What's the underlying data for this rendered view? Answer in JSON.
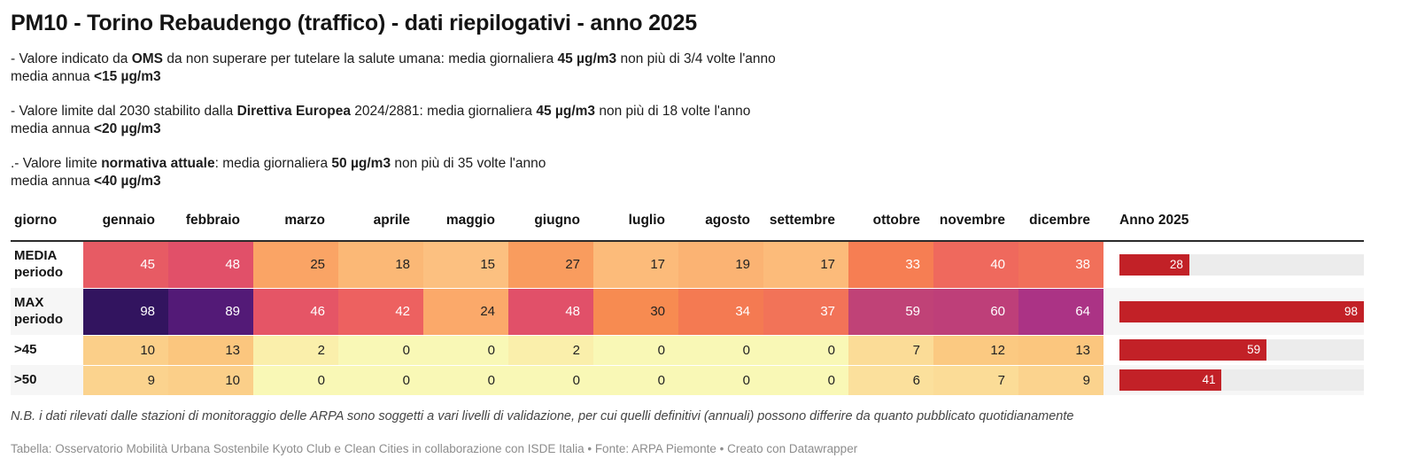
{
  "title": "PM10 - Torino Rebaudengo (traffico) - dati riepilogativi - anno 2025",
  "intro": {
    "p1_l1": [
      "- Valore indicato da ",
      "OMS",
      " da non superare per tutelare la salute umana: media giornaliera ",
      "45 µg/m3",
      " non più di 3/4 volte l'anno"
    ],
    "p1_l2": [
      "media annua ",
      "<15 µg/m3"
    ],
    "p2_l1": [
      "- Valore limite dal 2030 stabilito dalla ",
      "Direttiva Europea",
      " 2024/2881: media giornaliera ",
      "45 µg/m3",
      " non più di 18 volte l'anno"
    ],
    "p2_l2": [
      "media annua ",
      "<20 µg/m3"
    ],
    "p3_l1": [
      ".- Valore limite ",
      "normativa attuale",
      ": media giornaliera ",
      "50 µg/m3",
      " non più di 35 volte l'anno"
    ],
    "p3_l2": [
      "media annua ",
      "<40 µg/m3"
    ]
  },
  "chart_data": {
    "type": "table",
    "title": "PM10 - Torino Rebaudengo (traffico) - dati riepilogativi - anno 2025",
    "columns": [
      "giorno",
      "gennaio",
      "febbraio",
      "marzo",
      "aprile",
      "maggio",
      "giugno",
      "luglio",
      "agosto",
      "settembre",
      "ottobre",
      "novembre",
      "dicembre",
      "Anno 2025"
    ],
    "rows": [
      {
        "label": "MEDIA periodo",
        "values": [
          45,
          48,
          25,
          18,
          15,
          27,
          17,
          19,
          17,
          33,
          40,
          38
        ],
        "cell_colors": [
          "#e75b64",
          "#e15069",
          "#faa465",
          "#fbb876",
          "#fcc080",
          "#f99c5e",
          "#fcbb7a",
          "#fbb373",
          "#fcbb7a",
          "#f67e53",
          "#ef695d",
          "#f1705a"
        ],
        "anno_2025": 28
      },
      {
        "label": "MAX periodo",
        "values": [
          98,
          89,
          46,
          42,
          24,
          48,
          30,
          34,
          37,
          59,
          60,
          64
        ],
        "cell_colors": [
          "#32145f",
          "#531a77",
          "#e55566",
          "#ed6160",
          "#fba96a",
          "#e15069",
          "#f78b51",
          "#f47a52",
          "#f27358",
          "#c04277",
          "#be3f79",
          "#ab3385"
        ],
        "anno_2025": 98
      },
      {
        "label": ">45",
        "values": [
          10,
          13,
          2,
          0,
          0,
          2,
          0,
          0,
          0,
          7,
          12,
          13
        ],
        "cell_colors": [
          "#fbcf89",
          "#fbc67e",
          "#faefab",
          "#f9f8b6",
          "#f9f8b6",
          "#faefab",
          "#f9f8b6",
          "#f9f8b6",
          "#f9f8b6",
          "#fbdc97",
          "#fbc981",
          "#fbc67e"
        ],
        "anno_2025": 59
      },
      {
        "label": ">50",
        "values": [
          9,
          10,
          0,
          0,
          0,
          0,
          0,
          0,
          0,
          6,
          7,
          9
        ],
        "cell_colors": [
          "#fbd38e",
          "#fbcf89",
          "#f9f8b6",
          "#f9f8b6",
          "#f9f8b6",
          "#f9f8b6",
          "#f9f8b6",
          "#f9f8b6",
          "#f9f8b6",
          "#fbe09c",
          "#fbdc97",
          "#fbd38e"
        ],
        "anno_2025": 41
      }
    ],
    "bar": {
      "max": 98,
      "color": "#c22127",
      "track_color": "#ececec"
    },
    "white_text_threshold": 33,
    "dark_text_color": "#222222",
    "white_text_color": "#ffffff"
  },
  "footnote": "N.B. i dati rilevati dalle stazioni di monitoraggio delle ARPA sono soggetti a vari livelli di validazione, per cui quelli definitivi (annuali) possono differire da quanto pubblicato quotidianamente",
  "credits": "Tabella: Osservatorio Mobilità Urbana Sostenbile Kyoto Club e Clean Cities in collaborazione con ISDE Italia • Fonte: ARPA Piemonte • Creato con Datawrapper"
}
